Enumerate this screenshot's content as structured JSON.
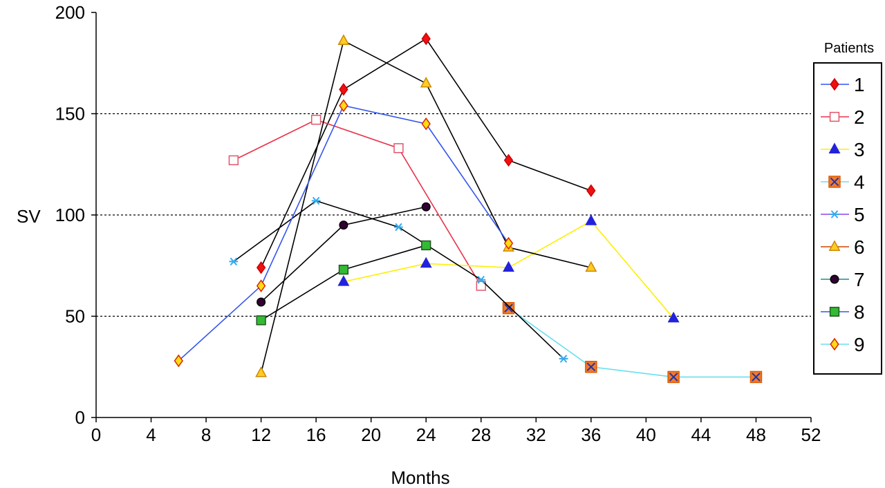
{
  "chart_data": {
    "type": "line",
    "xlabel": "Months",
    "ylabel": "SV",
    "xlim": [
      0,
      52
    ],
    "ylim": [
      0,
      200
    ],
    "xticks": [
      0,
      4,
      8,
      12,
      16,
      20,
      24,
      28,
      32,
      36,
      40,
      44,
      48,
      52
    ],
    "yticks": [
      0,
      50,
      100,
      150,
      200
    ],
    "grid": "dotted horizontal at 50, 100, 150",
    "legend_title": "Patients",
    "legend_position": "right",
    "series": [
      {
        "name": "1",
        "line": "#000000",
        "marker": "diamond",
        "fill": "#ee1111",
        "stroke": "#cc0000",
        "points": [
          [
            12,
            74
          ],
          [
            18,
            162
          ],
          [
            24,
            187
          ],
          [
            30,
            127
          ],
          [
            36,
            112
          ]
        ]
      },
      {
        "name": "2",
        "line": "#e8334a",
        "marker": "square",
        "fill": "#ffffff",
        "stroke": "#e0556a",
        "points": [
          [
            10,
            127
          ],
          [
            16,
            147
          ],
          [
            22,
            133
          ],
          [
            28,
            65
          ]
        ]
      },
      {
        "name": "3",
        "line": "#ffee00",
        "marker": "triangle",
        "fill": "#2222dd",
        "stroke": "#2222dd",
        "points": [
          [
            18,
            67
          ],
          [
            24,
            76
          ],
          [
            30,
            74
          ],
          [
            36,
            97
          ],
          [
            42,
            49
          ]
        ]
      },
      {
        "name": "4",
        "line": "#66e0ee",
        "marker": "xsquare",
        "fill": "#f07a2a",
        "stroke": "#e05a00",
        "points": [
          [
            30,
            54
          ],
          [
            36,
            25
          ],
          [
            42,
            20
          ],
          [
            48,
            20
          ]
        ]
      },
      {
        "name": "5",
        "line": "#000000",
        "marker": "asterisk",
        "fill": "#33aaee",
        "stroke": "#33aaee",
        "points": [
          [
            10,
            77
          ],
          [
            16,
            107
          ],
          [
            22,
            94
          ],
          [
            28,
            68
          ],
          [
            34,
            29
          ]
        ]
      },
      {
        "name": "6",
        "line": "#000000",
        "marker": "triangle",
        "fill": "#ffcc22",
        "stroke": "#cc8800",
        "points": [
          [
            12,
            22
          ],
          [
            18,
            186
          ],
          [
            24,
            165
          ],
          [
            30,
            84
          ],
          [
            36,
            74
          ]
        ]
      },
      {
        "name": "7",
        "line": "#000000",
        "marker": "circle",
        "fill": "#330033",
        "stroke": "#000000",
        "points": [
          [
            12,
            57
          ],
          [
            18,
            95
          ],
          [
            24,
            104
          ]
        ]
      },
      {
        "name": "8",
        "line": "#000000",
        "marker": "square",
        "fill": "#33bb33",
        "stroke": "#225522",
        "points": [
          [
            12,
            48
          ],
          [
            18,
            73
          ],
          [
            24,
            85
          ]
        ]
      },
      {
        "name": "9",
        "line": "#3355ee",
        "marker": "diamond",
        "fill": "#ffdd11",
        "stroke": "#dd2200",
        "points": [
          [
            6,
            28
          ],
          [
            12,
            65
          ],
          [
            18,
            154
          ],
          [
            24,
            145
          ],
          [
            30,
            86
          ]
        ]
      }
    ],
    "legend_lines": [
      "#3355ee",
      "#e8334a",
      "#ffee00",
      "#66e0ee",
      "#8844ee",
      "#cc4400",
      "#228888",
      "#3355ee",
      "#66e0ee"
    ]
  }
}
